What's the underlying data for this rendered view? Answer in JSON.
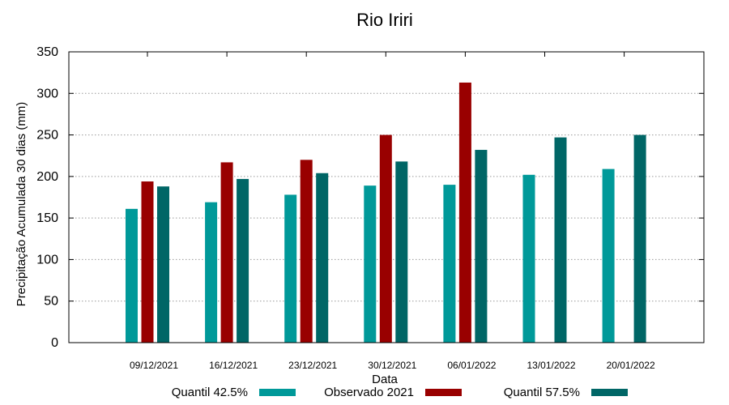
{
  "chart_data": {
    "type": "bar",
    "title": "Rio Iriri",
    "xlabel": "Data",
    "ylabel": "Precipitação Acumulada 30 dias (mm)",
    "ylim": [
      0,
      350
    ],
    "yticks": [
      0,
      50,
      100,
      150,
      200,
      250,
      300,
      350
    ],
    "grid": true,
    "legend_position": "bottom",
    "categories": [
      "09/12/2021",
      "16/12/2021",
      "23/12/2021",
      "30/12/2021",
      "06/01/2022",
      "13/01/2022",
      "20/01/2022"
    ],
    "series": [
      {
        "name": "Quantil 42.5%",
        "color": "#009999",
        "values": [
          161,
          169,
          178,
          189,
          190,
          202,
          209
        ]
      },
      {
        "name": "Observado 2021",
        "color": "#990000",
        "values": [
          194,
          217,
          220,
          250,
          313,
          null,
          null
        ]
      },
      {
        "name": "Quantil 57.5%",
        "color": "#006666",
        "values": [
          188,
          197,
          204,
          218,
          232,
          247,
          250
        ]
      }
    ]
  }
}
